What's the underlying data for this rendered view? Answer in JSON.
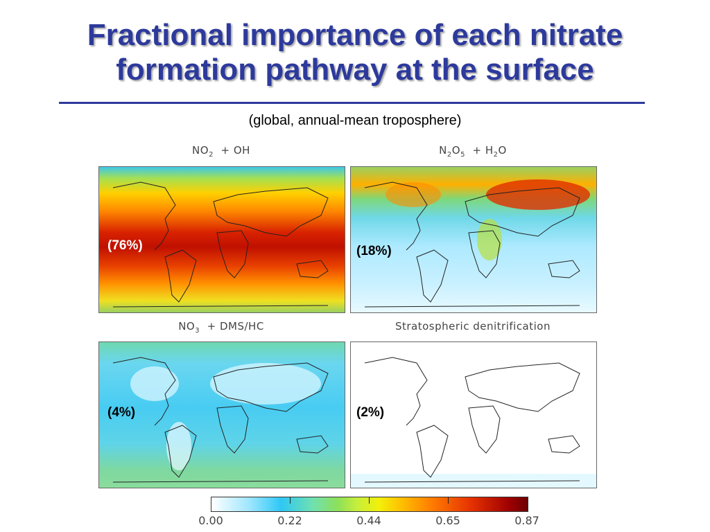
{
  "title": {
    "line1": "Fractional importance of each nitrate",
    "line2": "formation pathway at the surface"
  },
  "subtitle": "(global, annual-mean troposphere)",
  "panels": [
    {
      "title_main": "NO",
      "title_sub": "2",
      "title_rest": "+ OH",
      "percent": "(76%)",
      "percent_color": "#ffffff",
      "colormap": "high"
    },
    {
      "title_parts": [
        "N",
        "2",
        "O",
        "5",
        " + H",
        "2",
        "O"
      ],
      "percent": "(18%)",
      "percent_color": "#000000",
      "colormap": "low-mid"
    },
    {
      "title_main": "NO",
      "title_sub": "3",
      "title_rest": "+ DMS/HC",
      "percent": "(4%)",
      "percent_color": "#000000",
      "colormap": "low"
    },
    {
      "title_plain": "Stratospheric denitrification",
      "percent": "(2%)",
      "percent_color": "#000000",
      "colormap": "near-zero"
    }
  ],
  "colorbar": {
    "labels": [
      "0.00",
      "0.22",
      "0.44",
      "0.65",
      "0.87"
    ],
    "min": 0.0,
    "max": 0.87
  }
}
